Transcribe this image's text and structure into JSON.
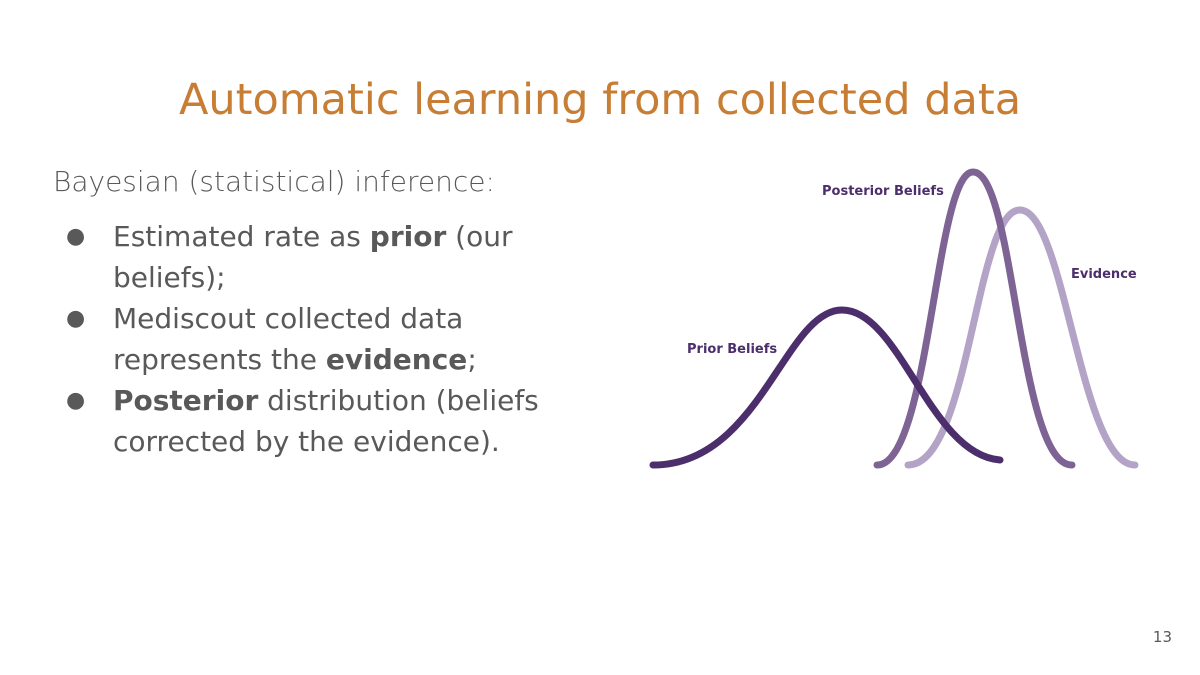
{
  "slide": {
    "title": "Automatic learning from collected data",
    "intro": "Bayesian (statistical) inference:",
    "bullets": [
      {
        "pre": "Estimated rate as ",
        "bold": "prior",
        "post": " (our beliefs);"
      },
      {
        "pre": "Mediscout collected data represents the ",
        "bold": "evidence",
        "post": ";"
      },
      {
        "pre": "",
        "bold": "Posterior",
        "post": " distribution (beliefs corrected by the evidence)."
      }
    ],
    "bullet_glyph": "●",
    "page_number": "13"
  },
  "figure": {
    "labels": {
      "prior": "Prior Beliefs",
      "posterior": "Posterior Beliefs",
      "evidence": "Evidence"
    },
    "colors": {
      "prior": "#4b2e6b",
      "posterior": "#7e6395",
      "evidence": "#b3a3c7",
      "label": "#4b2e6b",
      "title": "#c77d33",
      "text": "#595959"
    }
  }
}
